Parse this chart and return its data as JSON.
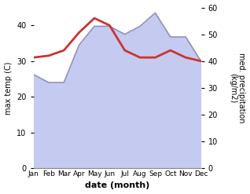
{
  "months": [
    "Jan",
    "Feb",
    "Mar",
    "Apr",
    "May",
    "Jun",
    "Jul",
    "Aug",
    "Sep",
    "Oct",
    "Nov",
    "Dec"
  ],
  "max_temp": [
    31,
    31.5,
    33,
    38,
    42,
    40,
    33,
    31,
    31,
    33,
    31,
    30
  ],
  "precipitation": [
    35,
    32,
    32,
    46,
    53,
    53,
    50,
    53,
    58,
    49,
    49,
    40
  ],
  "temp_color": "#cc3333",
  "precip_color_fill": "#c5caf0",
  "precip_color_line": "#9090bb",
  "temp_ylim": [
    0,
    45
  ],
  "precip_ylim": [
    0,
    60
  ],
  "temp_yticks": [
    0,
    10,
    20,
    30,
    40
  ],
  "precip_yticks": [
    0,
    10,
    20,
    30,
    40,
    50,
    60
  ],
  "xlabel": "date (month)",
  "ylabel_left": "max temp (C)",
  "ylabel_right": "med. precipitation\n(kg/m2)",
  "title": ""
}
